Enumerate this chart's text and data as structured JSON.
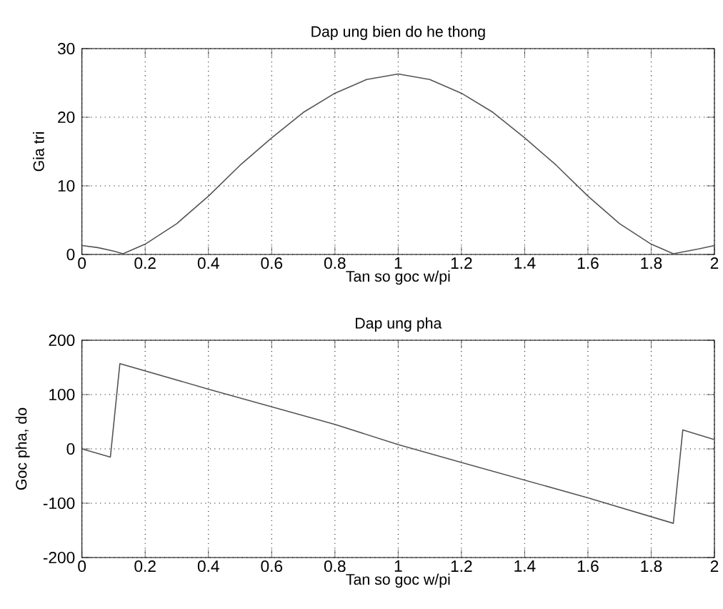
{
  "chart_data": [
    {
      "type": "line",
      "title": "Dap ung bien do he thong",
      "xlabel": "Tan so goc w/pi",
      "ylabel": "Gia tri",
      "xlim": [
        0,
        2
      ],
      "ylim": [
        0,
        30
      ],
      "xticks": [
        0,
        0.2,
        0.4,
        0.6,
        0.8,
        1,
        1.2,
        1.4,
        1.6,
        1.8,
        2
      ],
      "yticks": [
        0,
        10,
        20,
        30
      ],
      "grid": true,
      "line_style": "solid",
      "series": [
        {
          "color": "#555555",
          "x": [
            0,
            0.05,
            0.1,
            0.13,
            0.2,
            0.3,
            0.4,
            0.5,
            0.6,
            0.7,
            0.8,
            0.9,
            1.0,
            1.1,
            1.2,
            1.3,
            1.4,
            1.5,
            1.6,
            1.7,
            1.8,
            1.87,
            1.95,
            2
          ],
          "values": [
            1.3,
            1.0,
            0.5,
            0.1,
            1.5,
            4.5,
            8.5,
            13,
            17,
            20.7,
            23.5,
            25.5,
            26.3,
            25.5,
            23.5,
            20.7,
            17,
            13,
            8.5,
            4.5,
            1.5,
            0.1,
            0.8,
            1.3
          ]
        }
      ]
    },
    {
      "type": "line",
      "title": "Dap ung pha",
      "xlabel": "Tan so goc w/pi",
      "ylabel": "Goc pha, do",
      "xlim": [
        0,
        2
      ],
      "ylim": [
        -200,
        200
      ],
      "xticks": [
        0,
        0.2,
        0.4,
        0.6,
        0.8,
        1,
        1.2,
        1.4,
        1.6,
        1.8,
        2
      ],
      "yticks": [
        -200,
        -100,
        0,
        100,
        200
      ],
      "grid": true,
      "line_style": "solid",
      "series": [
        {
          "color": "#555555",
          "x": [
            0,
            0.09,
            0.12,
            0.4,
            0.8,
            1.0,
            1.2,
            1.6,
            1.87,
            1.9,
            2
          ],
          "values": [
            0,
            -15,
            157,
            110,
            45,
            8,
            -25,
            -90,
            -137,
            35,
            17
          ]
        }
      ]
    }
  ]
}
